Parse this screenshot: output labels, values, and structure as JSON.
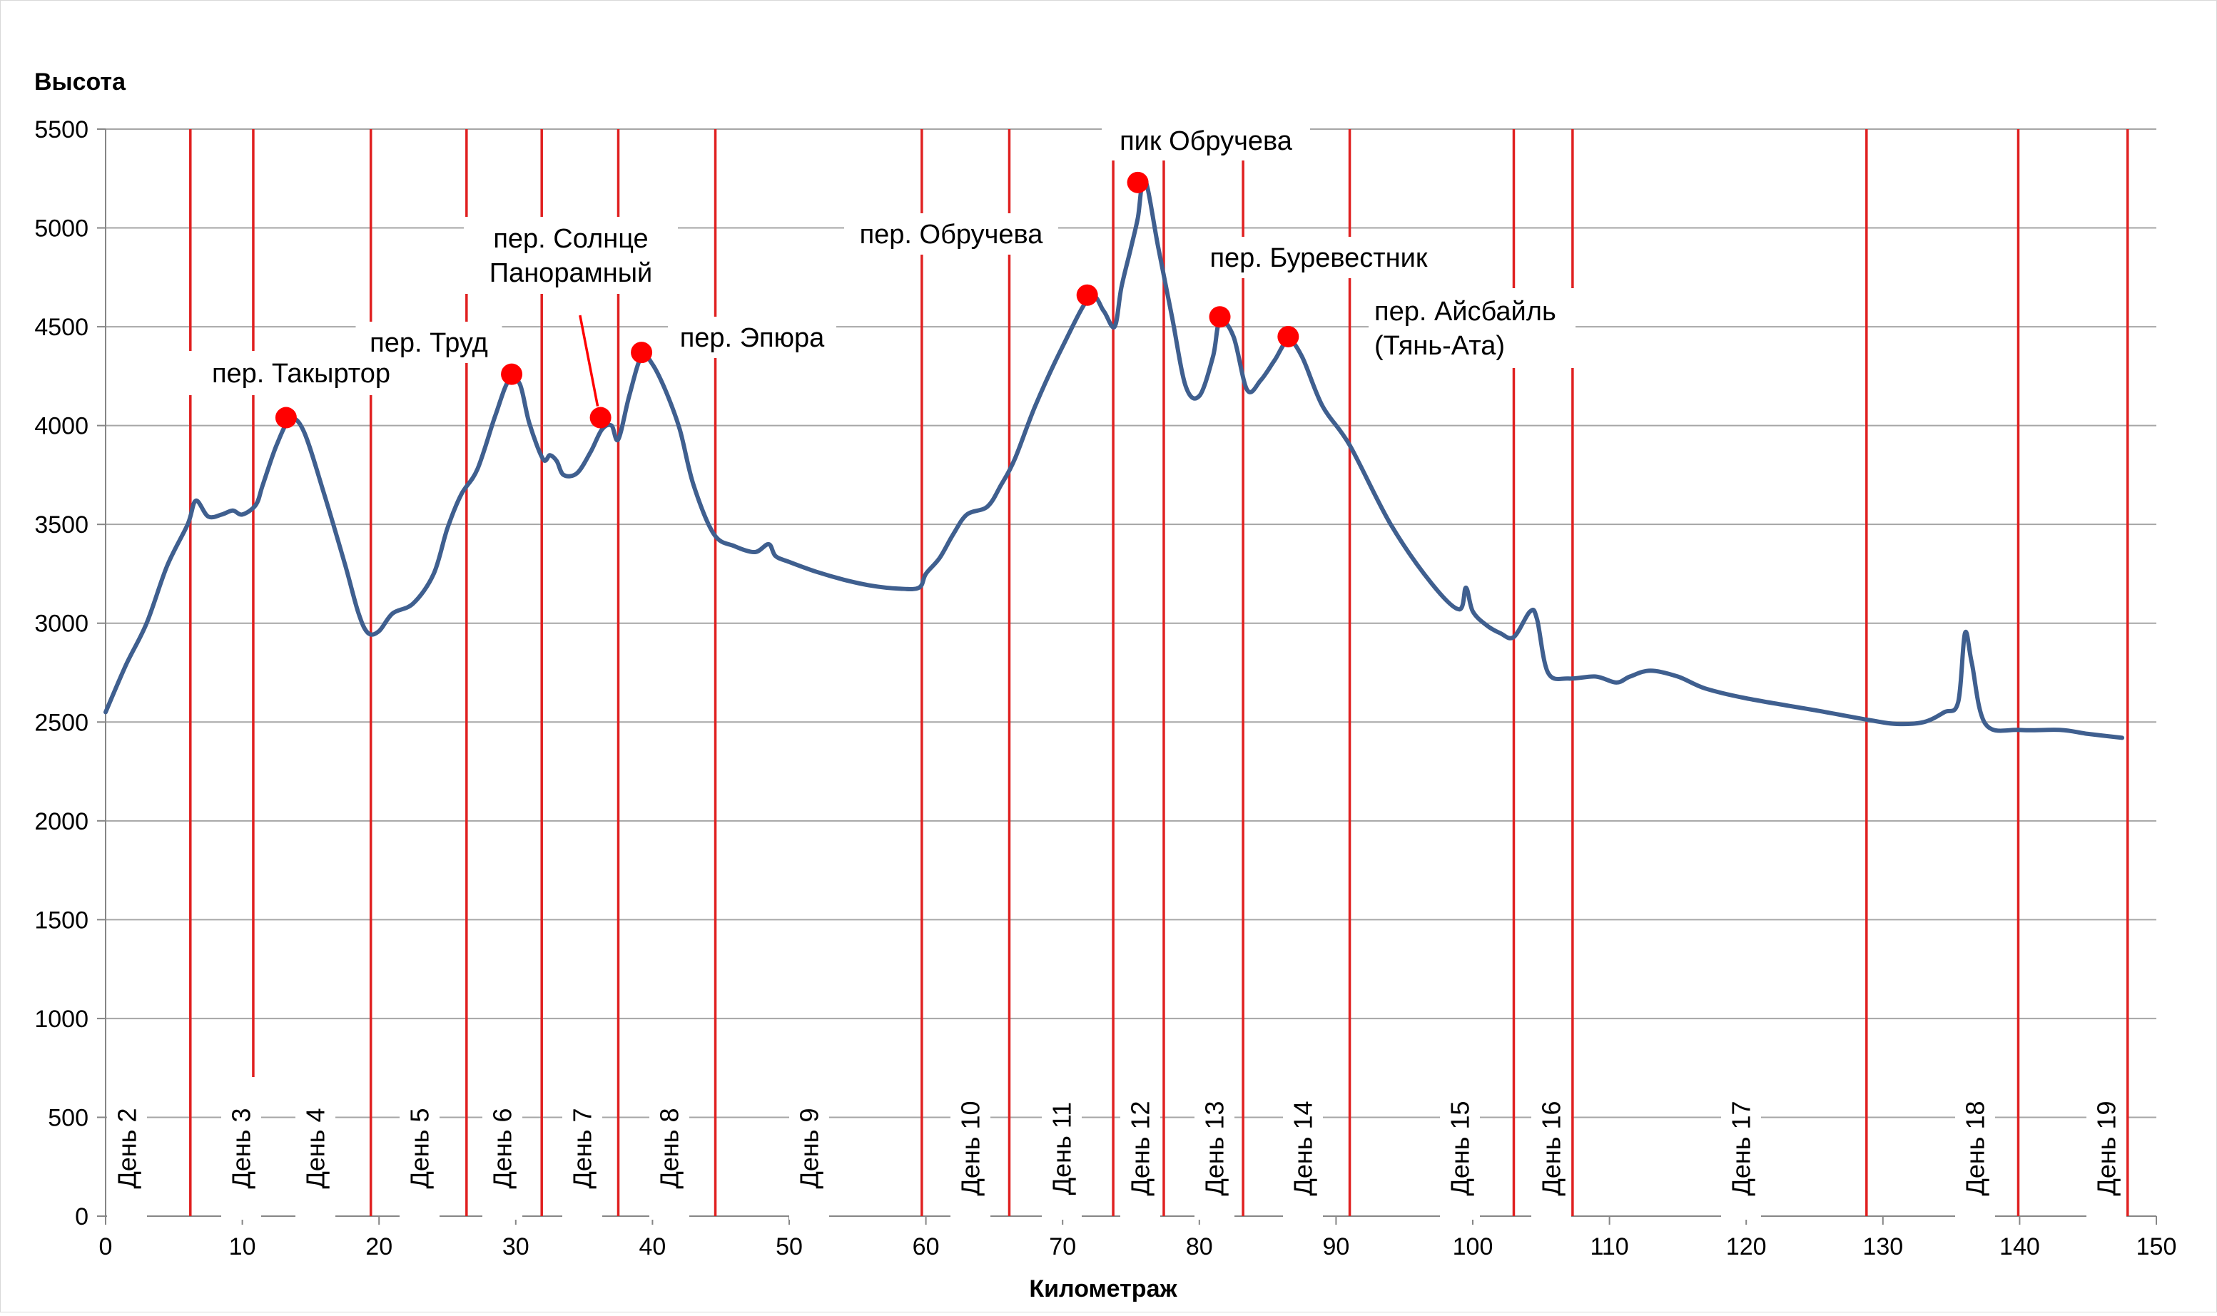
{
  "chart_data": {
    "type": "line",
    "ylabel": "Высота",
    "xlabel": "Километраж",
    "xlim": [
      0,
      150
    ],
    "ylim": [
      0,
      5500
    ],
    "x_ticks": [
      0,
      10,
      20,
      30,
      40,
      50,
      60,
      70,
      80,
      90,
      100,
      110,
      120,
      130,
      140,
      150
    ],
    "y_ticks": [
      0,
      500,
      1000,
      1500,
      2000,
      2500,
      3000,
      3500,
      4000,
      4500,
      5000,
      5500
    ],
    "grid": "horizontal",
    "colors": {
      "line": "#3f5f8f",
      "markers": "#ff0000",
      "day_lines": "#e02020",
      "grid": "#a6a6a6"
    },
    "series": [
      {
        "x": [
          0,
          1.5,
          3,
          4.5,
          6,
          6.6,
          7.5,
          8.5,
          9.3,
          10,
          11,
          11.5,
          12.5,
          13.5,
          14.5,
          16,
          17.5,
          18.5,
          19.2,
          20,
          21,
          22.5,
          24,
          25,
          26,
          27.2,
          28.5,
          29.5,
          30.3,
          31,
          32,
          32.5,
          33,
          33.5,
          34.5,
          35.5,
          36.3,
          37,
          37.5,
          38.3,
          39.2,
          40,
          41,
          42,
          43,
          44.5,
          46,
          47.5,
          48.5,
          49,
          50,
          52,
          54,
          56,
          58,
          59.5,
          60,
          61,
          62,
          63,
          64.5,
          65.5,
          66.5,
          68,
          70,
          72,
          73,
          73.8,
          74.3,
          75,
          75.5,
          76,
          77,
          78,
          79,
          80,
          81,
          81.5,
          82.5,
          83.5,
          84.5,
          85.5,
          86.5,
          87.5,
          89,
          91,
          94,
          97,
          99,
          99.5,
          100,
          101,
          102,
          103,
          104.2,
          104.7,
          105.5,
          107,
          109,
          110.5,
          111.5,
          113,
          115,
          117,
          120,
          125,
          129,
          131,
          133,
          134.5,
          135.5,
          136,
          136.5,
          137.5,
          140,
          143,
          145,
          147.5
        ],
        "y": [
          2550,
          2790,
          3000,
          3290,
          3500,
          3620,
          3540,
          3550,
          3570,
          3550,
          3600,
          3700,
          3900,
          4030,
          3970,
          3650,
          3300,
          3050,
          2950,
          2960,
          3050,
          3100,
          3250,
          3480,
          3650,
          3780,
          4050,
          4230,
          4210,
          4010,
          3830,
          3850,
          3820,
          3750,
          3760,
          3870,
          3980,
          4000,
          3930,
          4150,
          4350,
          4310,
          4170,
          3980,
          3700,
          3450,
          3390,
          3360,
          3400,
          3340,
          3310,
          3260,
          3220,
          3190,
          3175,
          3180,
          3250,
          3330,
          3450,
          3550,
          3590,
          3700,
          3830,
          4100,
          4400,
          4650,
          4580,
          4500,
          4700,
          4900,
          5050,
          5250,
          4900,
          4550,
          4200,
          4150,
          4350,
          4530,
          4450,
          4180,
          4230,
          4330,
          4430,
          4350,
          4100,
          3900,
          3500,
          3200,
          3070,
          3180,
          3060,
          2990,
          2950,
          2930,
          3060,
          3020,
          2750,
          2720,
          2730,
          2700,
          2730,
          2760,
          2730,
          2670,
          2620,
          2560,
          2510,
          2490,
          2500,
          2550,
          2600,
          2950,
          2800,
          2490,
          2460,
          2460,
          2440,
          2420
        ]
      }
    ],
    "markers": [
      {
        "x": 13.2,
        "y": 4040
      },
      {
        "x": 29.7,
        "y": 4260
      },
      {
        "x": 36.2,
        "y": 4040
      },
      {
        "x": 39.2,
        "y": 4370
      },
      {
        "x": 71.8,
        "y": 4660
      },
      {
        "x": 75.5,
        "y": 5230
      },
      {
        "x": 81.5,
        "y": 4550
      },
      {
        "x": 86.5,
        "y": 4450
      }
    ],
    "day_boundaries_km": [
      6.2,
      10.8,
      19.4,
      26.4,
      31.9,
      37.5,
      44.6,
      59.7,
      66.1,
      73.7,
      77.4,
      83.2,
      91.0,
      103.0,
      107.3,
      128.8,
      139.9,
      147.9
    ],
    "annotations": [
      {
        "lines": [
          "пер. Такыртор"
        ]
      },
      {
        "lines": [
          "пер. Труд"
        ]
      },
      {
        "lines": [
          "пер. Солнце",
          "Панорамный"
        ]
      },
      {
        "lines": [
          "пер. Эпюра"
        ]
      },
      {
        "lines": [
          "пер. Обручева"
        ]
      },
      {
        "lines": [
          "пик Обручева"
        ]
      },
      {
        "lines": [
          "пер. Буревестник"
        ]
      },
      {
        "lines": [
          "пер. Айсбайль",
          "(Тянь-Ата)"
        ]
      }
    ],
    "day_labels": [
      "День 2",
      "День 3",
      "День 4",
      "День 5",
      "День 6",
      "День 7",
      "День 8",
      "День 9",
      "День 10",
      "День 11",
      "День 12",
      "День 13",
      "День 14",
      "День 15",
      "День 16",
      "День 17",
      "День 18",
      "День 19"
    ]
  }
}
